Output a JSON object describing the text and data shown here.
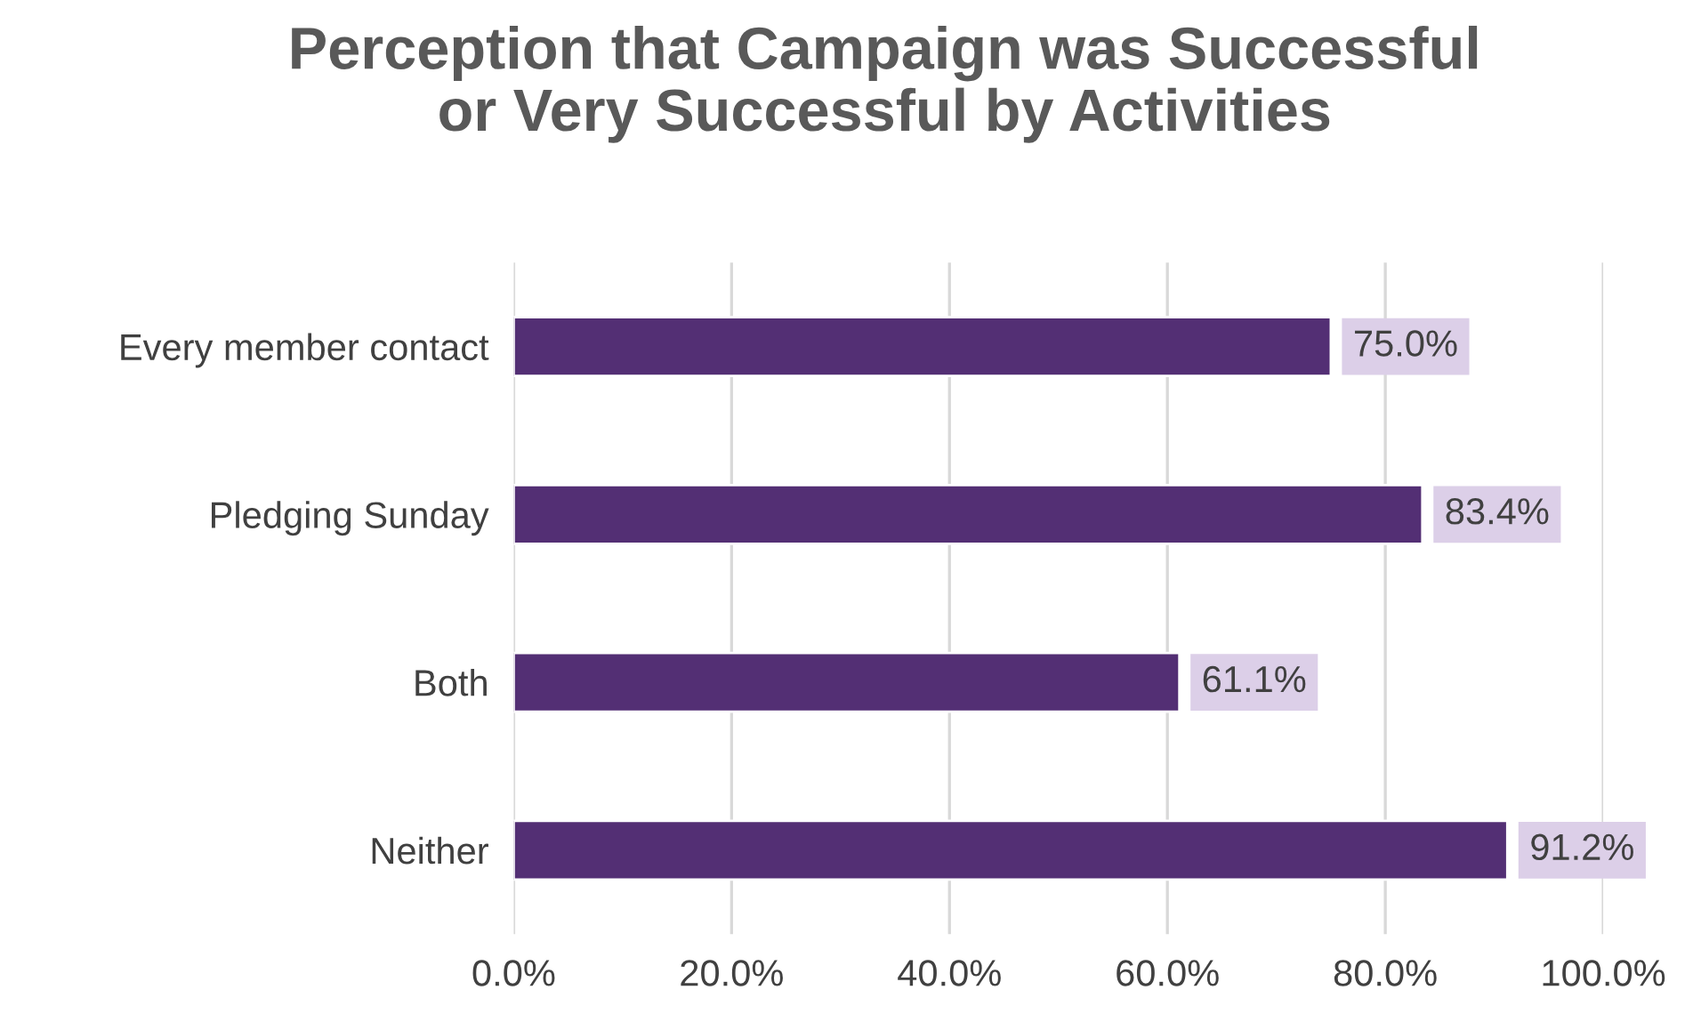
{
  "chart_data": {
    "type": "bar",
    "orientation": "horizontal",
    "title": "Perception that Campaign was Successful\nor Very Successful by Activities",
    "categories": [
      "Every member contact",
      "Pledging Sunday",
      "Both",
      "Neither"
    ],
    "values": [
      75.0,
      83.4,
      61.1,
      91.2
    ],
    "value_labels": [
      "75.0%",
      "83.4%",
      "61.1%",
      "91.2%"
    ],
    "color": "#532f74",
    "xlim": [
      0,
      100
    ],
    "xticks": [
      {
        "value": 0,
        "label": "0.0%"
      },
      {
        "value": 20,
        "label": "20.0%"
      },
      {
        "value": 40,
        "label": "40.0%"
      },
      {
        "value": 60,
        "label": "60.0%"
      },
      {
        "value": 80,
        "label": "80.0%"
      },
      {
        "value": 100,
        "label": "100.0%"
      }
    ],
    "grid": "x",
    "legend": false
  }
}
